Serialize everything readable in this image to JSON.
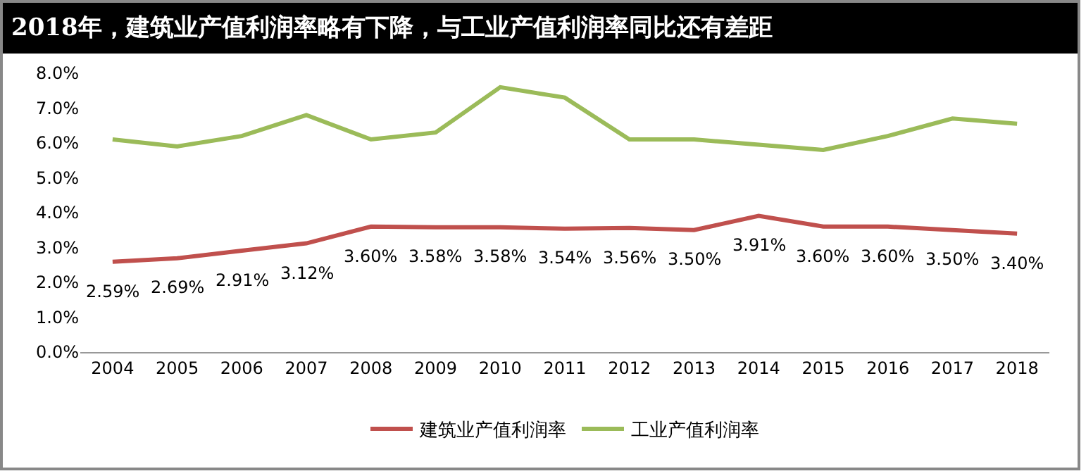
{
  "chart_data": {
    "type": "line",
    "title": "2018年，建筑业产值利润率略有下降，与工业产值利润率同比还有差距",
    "categories": [
      "2004",
      "2005",
      "2006",
      "2007",
      "2008",
      "2009",
      "2010",
      "2011",
      "2012",
      "2013",
      "2014",
      "2015",
      "2016",
      "2017",
      "2018"
    ],
    "series": [
      {
        "name": "建筑业产值利润率",
        "color": "#c0504d",
        "values": [
          2.59,
          2.69,
          2.91,
          3.12,
          3.6,
          3.58,
          3.58,
          3.54,
          3.56,
          3.5,
          3.91,
          3.6,
          3.6,
          3.5,
          3.4
        ],
        "value_labels": [
          "2.59%",
          "2.69%",
          "2.91%",
          "3.12%",
          "3.60%",
          "3.58%",
          "3.58%",
          "3.54%",
          "3.56%",
          "3.50%",
          "3.91%",
          "3.60%",
          "3.60%",
          "3.50%",
          "3.40%"
        ]
      },
      {
        "name": "工业产值利润率",
        "color": "#9bbb59",
        "values": [
          6.1,
          5.9,
          6.2,
          6.8,
          6.1,
          6.3,
          7.6,
          7.3,
          6.1,
          6.1,
          5.95,
          5.8,
          6.2,
          6.7,
          6.55
        ]
      }
    ],
    "ylim": [
      0,
      8
    ],
    "yticks": [
      {
        "value": 0,
        "label": "0.0%"
      },
      {
        "value": 1,
        "label": "1.0%"
      },
      {
        "value": 2,
        "label": "2.0%"
      },
      {
        "value": 3,
        "label": "3.0%"
      },
      {
        "value": 4,
        "label": "4.0%"
      },
      {
        "value": 5,
        "label": "5.0%"
      },
      {
        "value": 6,
        "label": "6.0%"
      },
      {
        "value": 7,
        "label": "7.0%"
      },
      {
        "value": 8,
        "label": "8.0%"
      }
    ],
    "grid": false,
    "legend": "bottom",
    "marker": "none",
    "line_style": "solid"
  }
}
